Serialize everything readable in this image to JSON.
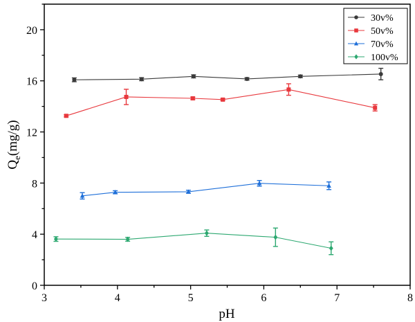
{
  "chart_data": {
    "type": "line",
    "title": "",
    "xlabel": "pH",
    "ylabel": "Q",
    "ylabel_sub": "e",
    "ylabel_unit": "(mg/g)",
    "xlim": [
      3,
      8
    ],
    "ylim": [
      0,
      22
    ],
    "xticks": [
      3,
      4,
      5,
      6,
      7,
      8
    ],
    "yticks": [
      0,
      4,
      8,
      12,
      16,
      20
    ],
    "legend_position": "top-right",
    "series": [
      {
        "name": "30v%",
        "color": "#3a3a3a",
        "marker": "circle",
        "x": [
          3.41,
          4.33,
          5.04,
          5.77,
          6.5,
          7.6
        ],
        "y": [
          16.08,
          16.13,
          16.35,
          16.15,
          16.35,
          16.53
        ],
        "err": [
          0.15,
          0.12,
          0.12,
          0.1,
          0.1,
          0.45
        ]
      },
      {
        "name": "50v%",
        "color": "#e8383d",
        "marker": "square",
        "x": [
          3.3,
          4.12,
          5.03,
          5.44,
          6.34,
          7.52
        ],
        "y": [
          13.26,
          14.74,
          14.63,
          14.53,
          15.32,
          13.89
        ],
        "err": [
          0.08,
          0.6,
          0.1,
          0.08,
          0.45,
          0.25
        ]
      },
      {
        "name": "70v%",
        "color": "#1e6fd9",
        "marker": "triangle",
        "x": [
          3.52,
          3.97,
          4.97,
          5.94,
          6.89
        ],
        "y": [
          7.0,
          7.28,
          7.32,
          7.98,
          7.79
        ],
        "err": [
          0.25,
          0.12,
          0.12,
          0.22,
          0.3
        ]
      },
      {
        "name": "100v%",
        "color": "#2ca870",
        "marker": "diamond",
        "x": [
          3.16,
          4.14,
          5.22,
          6.16,
          6.92
        ],
        "y": [
          3.62,
          3.6,
          4.08,
          3.76,
          2.9
        ],
        "err": [
          0.18,
          0.15,
          0.25,
          0.72,
          0.5
        ]
      }
    ]
  }
}
